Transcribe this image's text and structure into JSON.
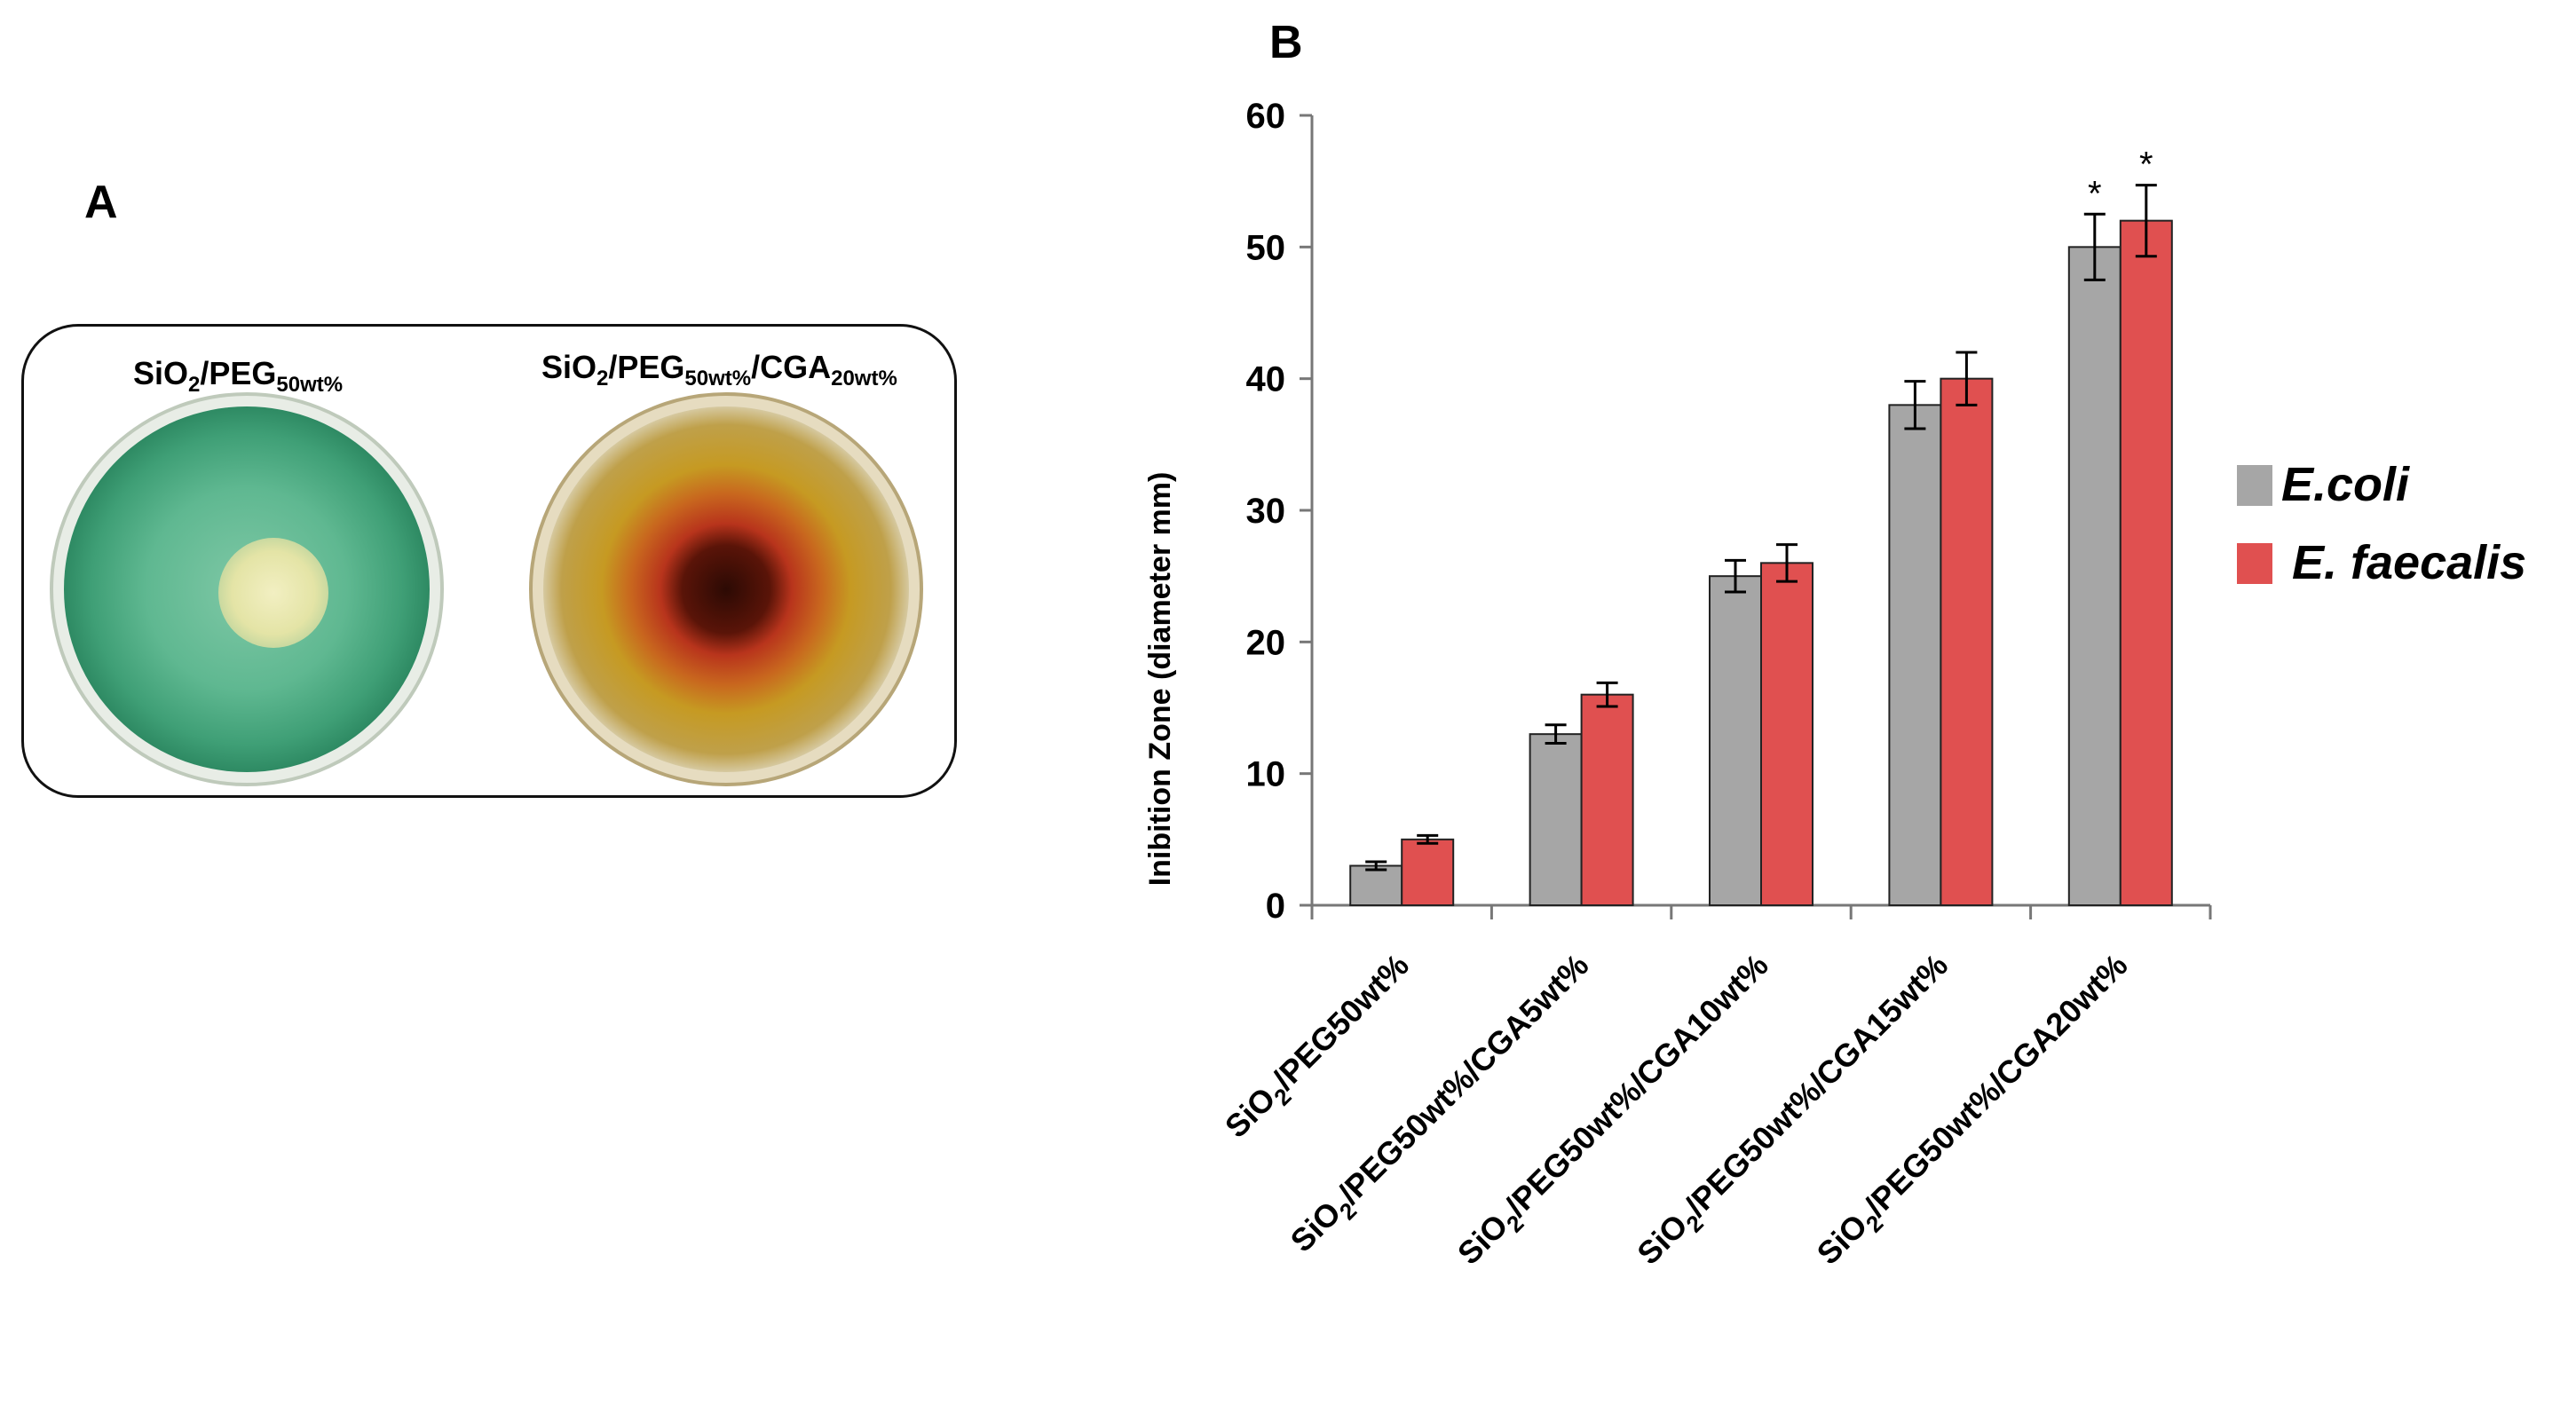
{
  "panel_a": {
    "letter": "A",
    "dish1": {
      "label_main": "SiO",
      "label_sub1": "2",
      "label_mid": "/PEG",
      "label_sub2": "50wt%"
    },
    "dish2": {
      "label_main": "SiO",
      "label_sub1": "2",
      "label_mid": "/PEG",
      "label_sub2": "50wt%",
      "label_mid2": "/CGA",
      "label_sub3": "20wt%"
    }
  },
  "panel_b": {
    "letter": "B"
  },
  "colors": {
    "ecoli": "#a6a6a6",
    "efaecalis": "#e05050",
    "plate_green": "#4aa882",
    "plate_amber": "#c6961e",
    "halo_red": "#b8341c"
  },
  "chart_data": {
    "type": "bar",
    "ylabel": "Inibition Zone (diameter mm)",
    "ylim": [
      0,
      60
    ],
    "yticks": [
      "0",
      "10",
      "20",
      "30",
      "40",
      "50",
      "60"
    ],
    "categories": [
      {
        "pre": "SiO",
        "sub": "2",
        "post": "/PEG50wt%"
      },
      {
        "pre": "SiO",
        "sub": "2",
        "post": "/PEG50wt%/CGA5wt%"
      },
      {
        "pre": "SiO",
        "sub": "2",
        "post": "/PEG50wt%/CGA10wt%"
      },
      {
        "pre": "SiO",
        "sub": "2",
        "post": "/PEG50wt%/CGA15wt%"
      },
      {
        "pre": "SiO",
        "sub": "2",
        "post": "/PEG50wt%/CGA20wt%"
      }
    ],
    "series": [
      {
        "name": "E.coli",
        "values": [
          3,
          13,
          25,
          38,
          50
        ],
        "errors": [
          0.3,
          0.7,
          1.2,
          1.8,
          2.5
        ]
      },
      {
        "name": "E. faecalis",
        "values": [
          5,
          16,
          26,
          40,
          52
        ],
        "errors": [
          0.3,
          0.9,
          1.4,
          2.0,
          2.7
        ]
      }
    ],
    "annotations": [
      "*",
      "*"
    ]
  }
}
